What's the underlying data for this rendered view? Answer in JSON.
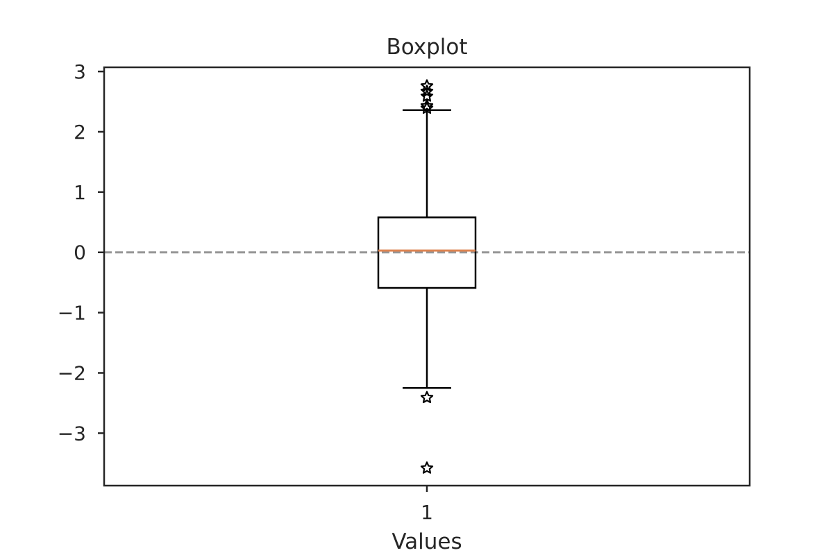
{
  "chart_data": {
    "type": "boxplot",
    "title": "Boxplot",
    "xlabel": "Values",
    "ylabel": "",
    "ylim": [
      -3.87,
      3.07
    ],
    "yticks": [
      -3,
      -2,
      -1,
      0,
      1,
      2,
      3
    ],
    "xticks": [
      1
    ],
    "grid": false,
    "reference_line": {
      "y": 0,
      "style": "dashed",
      "color": "#969696"
    },
    "colors": {
      "box": "#000000",
      "median": "#dd8452",
      "axes": "#262626",
      "flier_marker": "star"
    },
    "boxes": [
      {
        "x": 1,
        "whisker_low": -2.25,
        "q1": -0.59,
        "median": 0.03,
        "q3": 0.58,
        "whisker_high": 2.36,
        "fliers": [
          2.39,
          2.43,
          2.59,
          2.67,
          2.76,
          -2.41,
          -3.58
        ]
      }
    ]
  }
}
